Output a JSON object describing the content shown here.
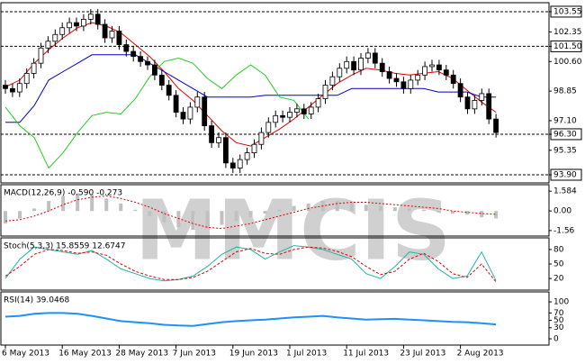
{
  "watermark": "MMCIS",
  "chart_data": [
    {
      "type": "candlestick",
      "categories": [
        "6 May 2013",
        null,
        null,
        null,
        null,
        null,
        null,
        null,
        "16 May 2013",
        null,
        null,
        null,
        null,
        null,
        null,
        null,
        "28 May 2013",
        null,
        null,
        null,
        null,
        null,
        null,
        null,
        "7 Jun 2013",
        null,
        null,
        null,
        null,
        null,
        null,
        null,
        "19 Jun 2013",
        null,
        null,
        null,
        null,
        null,
        null,
        null,
        "1 Jul 2013",
        null,
        null,
        null,
        null,
        null,
        null,
        null,
        "11 Jul 2013",
        null,
        null,
        null,
        null,
        null,
        null,
        null,
        "23 Jul 2013",
        null,
        null,
        null,
        null,
        null,
        null,
        null,
        "2 Aug 2013",
        null,
        null,
        null,
        null,
        null
      ],
      "open": [
        99.2,
        99.0,
        98.8,
        99.3,
        99.9,
        100.5,
        101.4,
        101.8,
        102.2,
        102.6,
        102.9,
        102.7,
        103.1,
        103.4,
        102.8,
        102.0,
        102.4,
        101.6,
        101.2,
        100.9,
        100.6,
        100.4,
        99.8,
        99.2,
        98.6,
        97.6,
        97.2,
        97.9,
        98.5,
        96.8,
        95.8,
        96.1,
        94.6,
        94.3,
        94.8,
        95.2,
        95.7,
        96.4,
        97.0,
        97.4,
        97.3,
        97.6,
        97.8,
        97.5,
        97.9,
        98.4,
        99.2,
        99.7,
        100.2,
        100.6,
        100.1,
        100.8,
        101.1,
        100.5,
        100.0,
        99.6,
        99.4,
        99.0,
        99.5,
        99.8,
        100.3,
        100.4,
        100.1,
        99.8,
        99.3,
        98.5,
        97.8,
        98.3,
        98.7,
        97.2
      ],
      "high": [
        99.5,
        99.3,
        99.6,
        100.2,
        100.8,
        101.7,
        102.1,
        102.5,
        102.9,
        103.2,
        103.2,
        103.4,
        103.7,
        103.7,
        103.1,
        102.7,
        102.7,
        101.9,
        101.5,
        101.2,
        100.9,
        100.7,
        100.1,
        99.5,
        98.9,
        97.9,
        98.2,
        98.8,
        98.8,
        97.1,
        96.4,
        96.4,
        94.9,
        95.1,
        95.5,
        96.0,
        96.7,
        97.3,
        97.7,
        97.7,
        97.9,
        98.1,
        98.1,
        98.2,
        98.7,
        99.5,
        100.0,
        100.5,
        100.9,
        100.9,
        101.1,
        101.4,
        101.4,
        100.8,
        100.3,
        99.9,
        99.7,
        99.8,
        100.1,
        100.6,
        100.7,
        100.7,
        100.4,
        100.1,
        99.6,
        98.8,
        98.6,
        99.0,
        99.0,
        97.5
      ],
      "low": [
        98.7,
        98.5,
        98.5,
        99.0,
        99.6,
        100.2,
        101.1,
        101.5,
        101.9,
        102.3,
        102.4,
        102.4,
        102.8,
        102.5,
        101.7,
        101.7,
        101.3,
        100.9,
        100.6,
        100.3,
        100.1,
        99.5,
        98.9,
        98.3,
        97.3,
        96.9,
        96.9,
        97.6,
        96.5,
        95.5,
        95.5,
        94.3,
        94.0,
        94.0,
        94.5,
        94.9,
        95.4,
        96.1,
        96.7,
        97.0,
        97.0,
        97.3,
        97.2,
        97.2,
        97.6,
        98.1,
        98.9,
        99.4,
        99.9,
        99.8,
        99.8,
        100.5,
        100.2,
        99.7,
        99.3,
        99.1,
        98.7,
        98.7,
        99.2,
        99.5,
        100.0,
        99.8,
        99.5,
        99.0,
        98.2,
        97.5,
        97.5,
        98.0,
        96.9,
        96.1
      ],
      "close": [
        99.0,
        98.8,
        99.3,
        99.9,
        100.5,
        101.4,
        101.8,
        102.2,
        102.6,
        102.9,
        102.7,
        103.1,
        103.4,
        102.8,
        102.0,
        102.4,
        101.6,
        101.2,
        100.9,
        100.6,
        100.4,
        99.8,
        99.2,
        98.6,
        97.6,
        97.2,
        97.9,
        98.5,
        96.8,
        95.8,
        96.1,
        94.6,
        94.3,
        94.8,
        95.2,
        95.7,
        96.4,
        97.0,
        97.4,
        97.3,
        97.6,
        97.8,
        97.5,
        97.9,
        98.4,
        99.2,
        99.7,
        100.2,
        100.6,
        100.1,
        100.8,
        101.1,
        100.5,
        100.0,
        99.6,
        99.4,
        99.0,
        99.5,
        99.8,
        100.3,
        100.4,
        100.1,
        99.8,
        99.3,
        98.5,
        97.8,
        98.3,
        98.7,
        97.2,
        96.4
      ],
      "lines": [
        {
          "color": "#e00000",
          "values": [
            99.1,
            99.5,
            100.5,
            101.3,
            102.0,
            102.6,
            102.9,
            102.7,
            102.3,
            101.6,
            100.9,
            100.0,
            99.0,
            98.3,
            97.4,
            96.5,
            95.8,
            95.6,
            96.1,
            96.6,
            97.2,
            97.9,
            98.6,
            99.3,
            99.8,
            100.2,
            100.1,
            99.9,
            99.8,
            99.9,
            100.0,
            99.6,
            98.9,
            98.2,
            97.6
          ]
        },
        {
          "color": "#0000c8",
          "values": [
            97.0,
            97.0,
            98.0,
            99.5,
            100.0,
            100.5,
            101.0,
            101.0,
            101.0,
            101.0,
            100.5,
            100.0,
            99.5,
            99.0,
            98.5,
            98.5,
            98.5,
            98.5,
            98.6,
            98.6,
            98.6,
            98.6,
            98.6,
            98.6,
            99.0,
            99.0,
            99.0,
            99.0,
            99.0,
            99.0,
            98.8,
            98.8,
            98.8,
            98.5,
            98.5
          ]
        },
        {
          "color": "#22cc22",
          "values": [
            97.9,
            96.8,
            96.1,
            94.3,
            95.2,
            96.4,
            97.4,
            97.6,
            97.5,
            98.4,
            99.7,
            100.6,
            100.8,
            100.5,
            99.6,
            99.0,
            99.8,
            100.4,
            99.8,
            98.5,
            98.3,
            97.2,
            null,
            null,
            null,
            null,
            null,
            null,
            null,
            null,
            null,
            null,
            null,
            null,
            null
          ]
        }
      ],
      "ylim": [
        93.42,
        104.08
      ],
      "yticks": [
        103.55,
        102.35,
        {
          "value": 101.5,
          "label": "101.50"
        },
        {
          "value": 100.6,
          "label": "100.60"
        },
        98.85,
        {
          "value": 97.1,
          "label": "97.10"
        },
        {
          "value": 96.3,
          "label": "96.30"
        },
        95.35,
        {
          "value": 93.9,
          "label": "93.90"
        }
      ],
      "levels": [
        103.55,
        101.5,
        96.3,
        93.9
      ]
    },
    {
      "type": "macd",
      "title": "MACD(12,26,9) -0.590 -0.273",
      "bars": {
        "color": "#c0c0c0",
        "values": [
          -1.0,
          -0.6,
          0.2,
          0.8,
          1.2,
          1.4,
          1.3,
          1.0,
          0.6,
          0.1,
          -0.4,
          -0.9,
          -1.3,
          -1.5,
          -1.4,
          -1.1,
          -0.8,
          -0.5,
          -0.2,
          0.1,
          0.4,
          0.6,
          0.8,
          0.8,
          0.7,
          0.5,
          0.4,
          0.3,
          0.2,
          0.1,
          -0.1,
          -0.2,
          -0.3,
          -0.5,
          -0.6
        ]
      },
      "lines": [
        {
          "color": "#e00000",
          "dash": "2,2",
          "values": [
            -0.8,
            -0.7,
            -0.4,
            0.0,
            0.5,
            0.9,
            1.1,
            1.2,
            1.0,
            0.7,
            0.3,
            -0.2,
            -0.6,
            -1.0,
            -1.3,
            -1.4,
            -1.2,
            -1.0,
            -0.7,
            -0.4,
            -0.1,
            0.2,
            0.4,
            0.6,
            0.7,
            0.7,
            0.6,
            0.5,
            0.4,
            0.3,
            0.2,
            0.0,
            -0.1,
            -0.2,
            -0.27
          ]
        }
      ],
      "ylim": [
        -2.0,
        2.1
      ],
      "yticks": [
        1.584,
        {
          "value": 0,
          "label": "0.00"
        },
        -1.56
      ]
    },
    {
      "type": "line",
      "title": "Stoch(5,3,3) 15.8559 12.6747",
      "lines": [
        {
          "color": "#20b2aa",
          "values": [
            20,
            60,
            85,
            80,
            75,
            70,
            78,
            60,
            40,
            30,
            20,
            15,
            18,
            25,
            45,
            70,
            85,
            80,
            60,
            75,
            88,
            85,
            80,
            70,
            60,
            30,
            20,
            45,
            75,
            70,
            40,
            20,
            25,
            75,
            16
          ]
        },
        {
          "color": "#e00000",
          "dash": "3,2",
          "values": [
            25,
            45,
            70,
            80,
            78,
            72,
            75,
            68,
            50,
            35,
            25,
            18,
            18,
            22,
            35,
            55,
            75,
            82,
            72,
            70,
            80,
            85,
            83,
            76,
            65,
            45,
            28,
            35,
            60,
            72,
            55,
            30,
            22,
            50,
            13
          ]
        }
      ],
      "ylim": [
        -4,
        104
      ],
      "yticks": [
        80,
        50,
        20
      ]
    },
    {
      "type": "line",
      "title": "RSI(14) 39.0468",
      "lines": [
        {
          "color": "#1e90ff",
          "width": 2,
          "values": [
            60,
            62,
            68,
            70,
            70,
            68,
            62,
            55,
            48,
            45,
            42,
            38,
            36,
            35,
            40,
            45,
            48,
            50,
            52,
            55,
            58,
            60,
            62,
            58,
            55,
            52,
            53,
            54,
            52,
            50,
            48,
            46,
            45,
            42,
            39
          ]
        }
      ],
      "ylim": [
        -17,
        127
      ],
      "yticks": [
        100,
        70,
        50,
        30,
        0
      ]
    }
  ]
}
